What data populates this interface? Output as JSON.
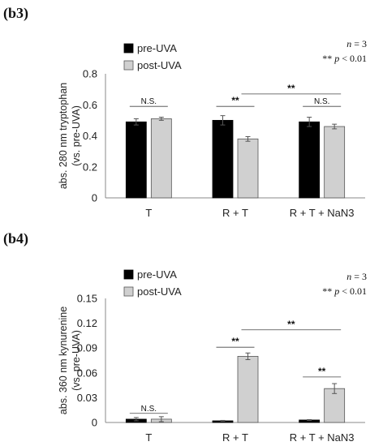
{
  "chart_data": [
    {
      "panel_label": "(b3)",
      "type": "bar",
      "ylabel": [
        "abs. 280 nm tryptophan",
        "(vs. pre-UVA)"
      ],
      "ylim": [
        0,
        0.8
      ],
      "yticks": [
        "0",
        "0.2",
        "0.4",
        "0.6",
        "0.8"
      ],
      "ytick_values": [
        0,
        0.2,
        0.4,
        0.6,
        0.8
      ],
      "categories": [
        "T",
        "R + T",
        "R + T + NaN3"
      ],
      "series": [
        {
          "name": "pre-UVA",
          "color": "#000000",
          "values": [
            0.49,
            0.5,
            0.49
          ],
          "errors": [
            0.02,
            0.03,
            0.03
          ]
        },
        {
          "name": "post-UVA",
          "color": "#d0d0d0",
          "values": [
            0.51,
            0.38,
            0.46
          ],
          "errors": [
            0.01,
            0.015,
            0.015
          ]
        }
      ],
      "annotations": {
        "n": "n",
        "n_value": "= 3",
        "p_stars": "**",
        "p": "p",
        "p_value": "< 0.01"
      },
      "significance": [
        {
          "text": "N.S.",
          "from": [
            0,
            0
          ],
          "to": [
            0,
            1
          ],
          "y": 0.59
        },
        {
          "text": "**",
          "from": [
            1,
            0
          ],
          "to": [
            1,
            1
          ],
          "y": 0.59
        },
        {
          "text": "**",
          "from": [
            1,
            1
          ],
          "to": [
            2,
            1
          ],
          "y": 0.67
        },
        {
          "text": "N.S.",
          "from": [
            2,
            0
          ],
          "to": [
            2,
            1
          ],
          "y": 0.59
        }
      ]
    },
    {
      "panel_label": "(b4)",
      "type": "bar",
      "ylabel": [
        "abs. 360 nm kynurenine",
        "(vs. pre-UVA)"
      ],
      "ylim": [
        0,
        0.15
      ],
      "yticks": [
        "0",
        "0.03",
        "0.06",
        "0.09",
        "0.12",
        "0.15"
      ],
      "ytick_values": [
        0,
        0.03,
        0.06,
        0.09,
        0.12,
        0.15
      ],
      "categories": [
        "T",
        "R + T",
        "R + T + NaN3"
      ],
      "series": [
        {
          "name": "pre-UVA",
          "color": "#000000",
          "values": [
            0.004,
            0.002,
            0.003
          ],
          "errors": [
            0.002,
            0.0005,
            0.0005
          ]
        },
        {
          "name": "post-UVA",
          "color": "#d0d0d0",
          "values": [
            0.004,
            0.08,
            0.041
          ],
          "errors": [
            0.003,
            0.004,
            0.006
          ]
        }
      ],
      "annotations": {
        "n": "n",
        "n_value": "= 3",
        "p_stars": "**",
        "p": "p",
        "p_value": "< 0.01"
      },
      "significance": [
        {
          "text": "N.S.",
          "from": [
            0,
            0
          ],
          "to": [
            0,
            1
          ],
          "y": 0.011
        },
        {
          "text": "**",
          "from": [
            1,
            0
          ],
          "to": [
            1,
            1
          ],
          "y": 0.091
        },
        {
          "text": "**",
          "from": [
            1,
            1
          ],
          "to": [
            2,
            1
          ],
          "y": 0.112
        },
        {
          "text": "**",
          "from": [
            2,
            0
          ],
          "to": [
            2,
            1
          ],
          "y": 0.055
        }
      ]
    }
  ]
}
